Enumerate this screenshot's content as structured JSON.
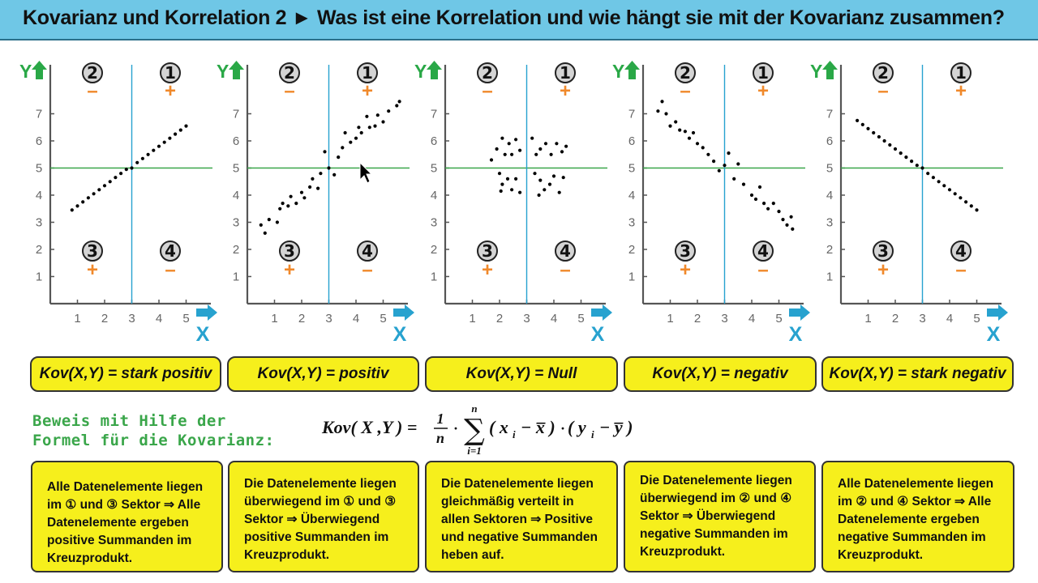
{
  "header": {
    "title": "Kovarianz und Korrelation 2 ► Was ist eine Korrelation und wie hängt sie mit der Kovarianz zusammen?"
  },
  "axes": {
    "y_label": "Y",
    "x_label": "X",
    "y_ticks": [
      "1",
      "2",
      "3",
      "4",
      "5",
      "6",
      "7"
    ],
    "x_ticks": [
      "1",
      "2",
      "3",
      "4",
      "5"
    ],
    "quadrant_numbers": [
      "①",
      "②",
      "③",
      "④"
    ],
    "quadrant_signs": {
      "q1": "+",
      "q2": "–",
      "q3": "+",
      "q4": "–"
    }
  },
  "colors": {
    "title_bg": "#6fc7e6",
    "yellow": "#f6ef1c",
    "orange": "#f0892b",
    "green": "#3aa64a",
    "blue_axis": "#27a2cf",
    "arrow_y": "#2aa847",
    "arrow_x": "#27a2cf"
  },
  "chart_data": [
    {
      "type": "scatter",
      "title": "",
      "xlabel": "X",
      "ylabel": "Y",
      "xlim": [
        0,
        5.8
      ],
      "ylim": [
        0,
        8
      ],
      "x_center": 3,
      "y_center": 5,
      "points": [
        [
          0.8,
          3.45
        ],
        [
          1.0,
          3.6
        ],
        [
          1.2,
          3.75
        ],
        [
          1.4,
          3.9
        ],
        [
          1.6,
          4.05
        ],
        [
          1.8,
          4.2
        ],
        [
          2.0,
          4.35
        ],
        [
          2.2,
          4.5
        ],
        [
          2.4,
          4.65
        ],
        [
          2.6,
          4.8
        ],
        [
          2.8,
          4.95
        ],
        [
          3.0,
          5.0
        ],
        [
          3.2,
          5.2
        ],
        [
          3.4,
          5.35
        ],
        [
          3.6,
          5.5
        ],
        [
          3.8,
          5.65
        ],
        [
          4.0,
          5.8
        ],
        [
          4.2,
          5.95
        ],
        [
          4.4,
          6.1
        ],
        [
          4.6,
          6.25
        ],
        [
          4.8,
          6.4
        ],
        [
          5.0,
          6.55
        ]
      ]
    },
    {
      "type": "scatter",
      "title": "",
      "xlabel": "X",
      "ylabel": "Y",
      "xlim": [
        0,
        5.8
      ],
      "ylim": [
        0,
        8
      ],
      "x_center": 3,
      "y_center": 5,
      "points": [
        [
          0.5,
          2.9
        ],
        [
          0.65,
          2.6
        ],
        [
          0.8,
          3.1
        ],
        [
          1.1,
          3.0
        ],
        [
          1.2,
          3.5
        ],
        [
          1.3,
          3.7
        ],
        [
          1.5,
          3.6
        ],
        [
          1.6,
          3.95
        ],
        [
          1.8,
          3.7
        ],
        [
          2.0,
          4.1
        ],
        [
          2.1,
          3.9
        ],
        [
          2.3,
          4.3
        ],
        [
          2.4,
          4.6
        ],
        [
          2.6,
          4.25
        ],
        [
          2.7,
          4.8
        ],
        [
          2.85,
          5.6
        ],
        [
          3.0,
          5.0
        ],
        [
          3.2,
          4.75
        ],
        [
          3.35,
          5.4
        ],
        [
          3.5,
          5.75
        ],
        [
          3.6,
          6.3
        ],
        [
          3.8,
          5.95
        ],
        [
          4.0,
          6.1
        ],
        [
          4.1,
          6.5
        ],
        [
          4.2,
          6.3
        ],
        [
          4.4,
          6.9
        ],
        [
          4.5,
          6.5
        ],
        [
          4.7,
          6.55
        ],
        [
          4.8,
          6.95
        ],
        [
          5.0,
          6.7
        ],
        [
          5.2,
          7.1
        ],
        [
          5.5,
          7.3
        ],
        [
          5.6,
          7.45
        ]
      ]
    },
    {
      "type": "scatter",
      "title": "",
      "xlabel": "X",
      "ylabel": "Y",
      "xlim": [
        0,
        5.8
      ],
      "ylim": [
        0,
        8
      ],
      "x_center": 3,
      "y_center": 5,
      "points": [
        [
          1.7,
          5.3
        ],
        [
          1.9,
          5.7
        ],
        [
          2.1,
          6.1
        ],
        [
          2.2,
          5.5
        ],
        [
          2.35,
          5.9
        ],
        [
          2.45,
          5.5
        ],
        [
          2.6,
          6.05
        ],
        [
          2.75,
          5.65
        ],
        [
          2.0,
          4.8
        ],
        [
          2.1,
          4.4
        ],
        [
          2.3,
          4.6
        ],
        [
          2.45,
          4.2
        ],
        [
          2.6,
          4.6
        ],
        [
          2.75,
          4.1
        ],
        [
          2.05,
          4.15
        ],
        [
          3.2,
          6.1
        ],
        [
          3.35,
          5.5
        ],
        [
          3.5,
          5.7
        ],
        [
          3.7,
          5.9
        ],
        [
          3.9,
          5.5
        ],
        [
          4.1,
          5.9
        ],
        [
          4.3,
          5.6
        ],
        [
          4.45,
          5.8
        ],
        [
          3.3,
          4.8
        ],
        [
          3.5,
          4.55
        ],
        [
          3.65,
          4.2
        ],
        [
          3.85,
          4.4
        ],
        [
          4.0,
          4.7
        ],
        [
          4.2,
          4.1
        ],
        [
          3.45,
          4.0
        ],
        [
          4.35,
          4.65
        ]
      ]
    },
    {
      "type": "scatter",
      "title": "",
      "xlabel": "X",
      "ylabel": "Y",
      "xlim": [
        0,
        5.8
      ],
      "ylim": [
        0,
        8
      ],
      "x_center": 3,
      "y_center": 5,
      "points": [
        [
          0.55,
          7.1
        ],
        [
          0.7,
          7.45
        ],
        [
          0.85,
          7.0
        ],
        [
          1.0,
          6.55
        ],
        [
          1.2,
          6.7
        ],
        [
          1.35,
          6.4
        ],
        [
          1.55,
          6.35
        ],
        [
          1.7,
          6.1
        ],
        [
          1.85,
          6.3
        ],
        [
          2.0,
          5.9
        ],
        [
          2.2,
          5.75
        ],
        [
          2.4,
          5.5
        ],
        [
          2.6,
          5.25
        ],
        [
          2.8,
          4.9
        ],
        [
          3.0,
          5.1
        ],
        [
          3.15,
          5.55
        ],
        [
          3.35,
          4.6
        ],
        [
          3.5,
          5.15
        ],
        [
          3.7,
          4.4
        ],
        [
          4.0,
          4.0
        ],
        [
          4.15,
          3.85
        ],
        [
          4.3,
          4.3
        ],
        [
          4.45,
          3.7
        ],
        [
          4.6,
          3.5
        ],
        [
          4.8,
          3.7
        ],
        [
          5.0,
          3.4
        ],
        [
          5.15,
          3.1
        ],
        [
          5.3,
          2.9
        ],
        [
          5.45,
          3.2
        ],
        [
          5.5,
          2.75
        ]
      ]
    },
    {
      "type": "scatter",
      "title": "",
      "xlabel": "X",
      "ylabel": "Y",
      "xlim": [
        0,
        5.8
      ],
      "ylim": [
        0,
        8
      ],
      "x_center": 3,
      "y_center": 5,
      "points": [
        [
          0.6,
          6.75
        ],
        [
          0.8,
          6.6
        ],
        [
          1.0,
          6.45
        ],
        [
          1.2,
          6.3
        ],
        [
          1.4,
          6.15
        ],
        [
          1.6,
          6.0
        ],
        [
          1.8,
          5.85
        ],
        [
          2.0,
          5.7
        ],
        [
          2.2,
          5.55
        ],
        [
          2.4,
          5.4
        ],
        [
          2.6,
          5.25
        ],
        [
          2.8,
          5.1
        ],
        [
          3.0,
          5.0
        ],
        [
          3.2,
          4.8
        ],
        [
          3.4,
          4.65
        ],
        [
          3.6,
          4.5
        ],
        [
          3.8,
          4.35
        ],
        [
          4.0,
          4.2
        ],
        [
          4.2,
          4.05
        ],
        [
          4.4,
          3.9
        ],
        [
          4.6,
          3.75
        ],
        [
          4.8,
          3.6
        ],
        [
          5.0,
          3.45
        ]
      ]
    }
  ],
  "kov_labels": [
    "Kov(X,Y) = stark positiv",
    "Kov(X,Y) = positiv",
    "Kov(X,Y) = Null",
    "Kov(X,Y) = negativ",
    "Kov(X,Y) = stark negativ"
  ],
  "proof": {
    "line1": "Beweis mit Hilfe der",
    "line2": "Formel für die Kovarianz:"
  },
  "formula": {
    "lhs": "Kov( X ,Y ) =",
    "frac_num": "1",
    "frac_den": "n",
    "sum_top": "n",
    "sum_bottom": "i=1",
    "sigma": "∑",
    "dot": "·",
    "term1": "( x",
    "term1_sub": "i",
    "term1_rest": "− x̅ )",
    "term2": "( y",
    "term2_sub": "i",
    "term2_rest": "− y̅ )"
  },
  "descriptions": [
    [
      "Alle Datenelemente liegen",
      "im ① und ③ Sektor ⇒ Alle",
      "Datenelemente ergeben",
      "positive Summanden im",
      "Kreuzprodukt."
    ],
    [
      "Die Datenelemente liegen",
      "überwiegend im ① und ③",
      "Sektor ⇒ Überwiegend",
      "positive Summanden im",
      "Kreuzprodukt."
    ],
    [
      "Die Datenelemente liegen",
      "gleichmäßig verteilt in",
      "allen Sektoren ⇒ Positive",
      "und negative Summanden",
      "heben auf."
    ],
    [
      "Die Datenelemente liegen",
      "überwiegend im ② und ④",
      "Sektor ⇒ Überwiegend",
      "negative Summanden im",
      "Kreuzprodukt."
    ],
    [
      "Alle Datenelemente liegen",
      "im ② und ④  Sektor ⇒ Alle",
      "Datenelemente ergeben",
      "negative Summanden im",
      "Kreuzprodukt."
    ]
  ]
}
